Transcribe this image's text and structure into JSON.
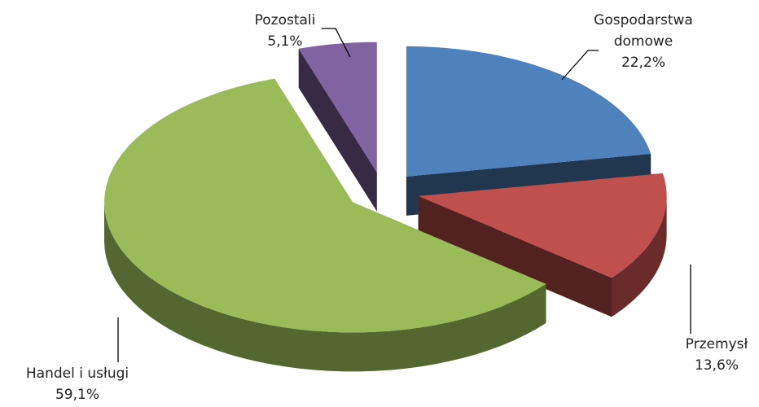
{
  "chart_data": {
    "type": "pie3d",
    "categories": [
      "Gospodarstwa domowe",
      "Przemysł",
      "Handel i usługi",
      "Pozostali"
    ],
    "values": [
      22.2,
      13.6,
      59.1,
      5.1
    ],
    "value_labels": [
      "22,2%",
      "13,6%",
      "59,1%",
      "5,1%"
    ],
    "colors": [
      "#4f81bd",
      "#c0504d",
      "#9bbb59",
      "#8064a2"
    ]
  }
}
